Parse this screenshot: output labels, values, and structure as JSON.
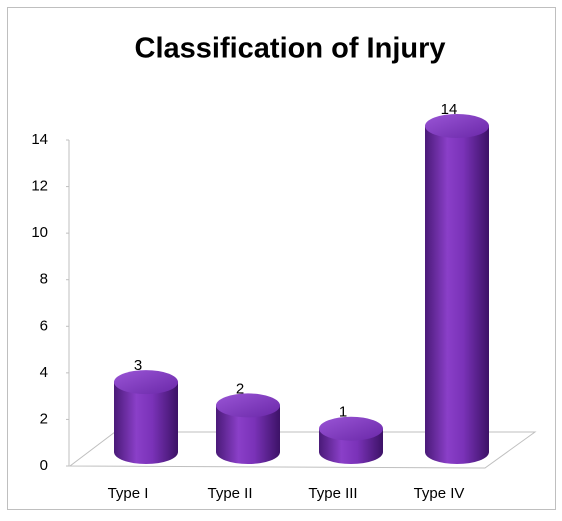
{
  "chart_data": {
    "type": "bar",
    "title": "Classification of Injury",
    "categories": [
      "Type I",
      "Type II",
      "Type III",
      "Type IV"
    ],
    "values": [
      3,
      2,
      1,
      14
    ],
    "color": "#7030a0",
    "ylim": [
      0,
      14
    ],
    "yticks": [
      0,
      2,
      4,
      6,
      8,
      10,
      12,
      14
    ],
    "grid": false
  }
}
